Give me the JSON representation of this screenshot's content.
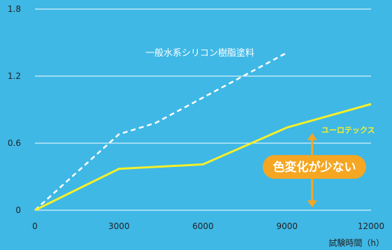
{
  "colors": {
    "background": "#3fb8e6",
    "gridline": "#ffffff",
    "axis_text": "#222222",
    "series_highlight": "#f7ef2a",
    "series_reference": "#ffffff",
    "callout_fill": "#f5a623",
    "callout_text": "#ffffff",
    "arrow": "#f5a623"
  },
  "chart_data": {
    "type": "line",
    "title": "",
    "xlabel": "試験時間（h）",
    "ylabel": "",
    "xlim": [
      0,
      12000
    ],
    "ylim": [
      0,
      1.8
    ],
    "x_ticks": [
      0,
      3000,
      6000,
      9000,
      12000
    ],
    "x_tick_labels": [
      "0",
      "3000",
      "6000",
      "9000",
      "12000"
    ],
    "y_ticks": [
      0,
      0.6,
      1.2,
      1.8
    ],
    "y_tick_labels": [
      "0",
      "0.6",
      "1.2",
      "1.8"
    ],
    "grid": "horizontal",
    "legend": "inline-labels",
    "series": [
      {
        "name": "一般水系シリコン樹脂塗料",
        "style": "dashed",
        "color": "#ffffff",
        "x": [
          0,
          3000,
          4300,
          9000
        ],
        "y": [
          0,
          0.68,
          0.78,
          1.41
        ]
      },
      {
        "name": "ユーロテックス",
        "style": "solid",
        "color": "#f7ef2a",
        "x": [
          0,
          3000,
          6000,
          9000,
          12000
        ],
        "y": [
          0,
          0.37,
          0.41,
          0.74,
          0.95
        ]
      }
    ],
    "annotation": {
      "text": "色変化が少ない",
      "arrow_x": 9900,
      "arrow_y_range": [
        0,
        0.74
      ]
    }
  }
}
